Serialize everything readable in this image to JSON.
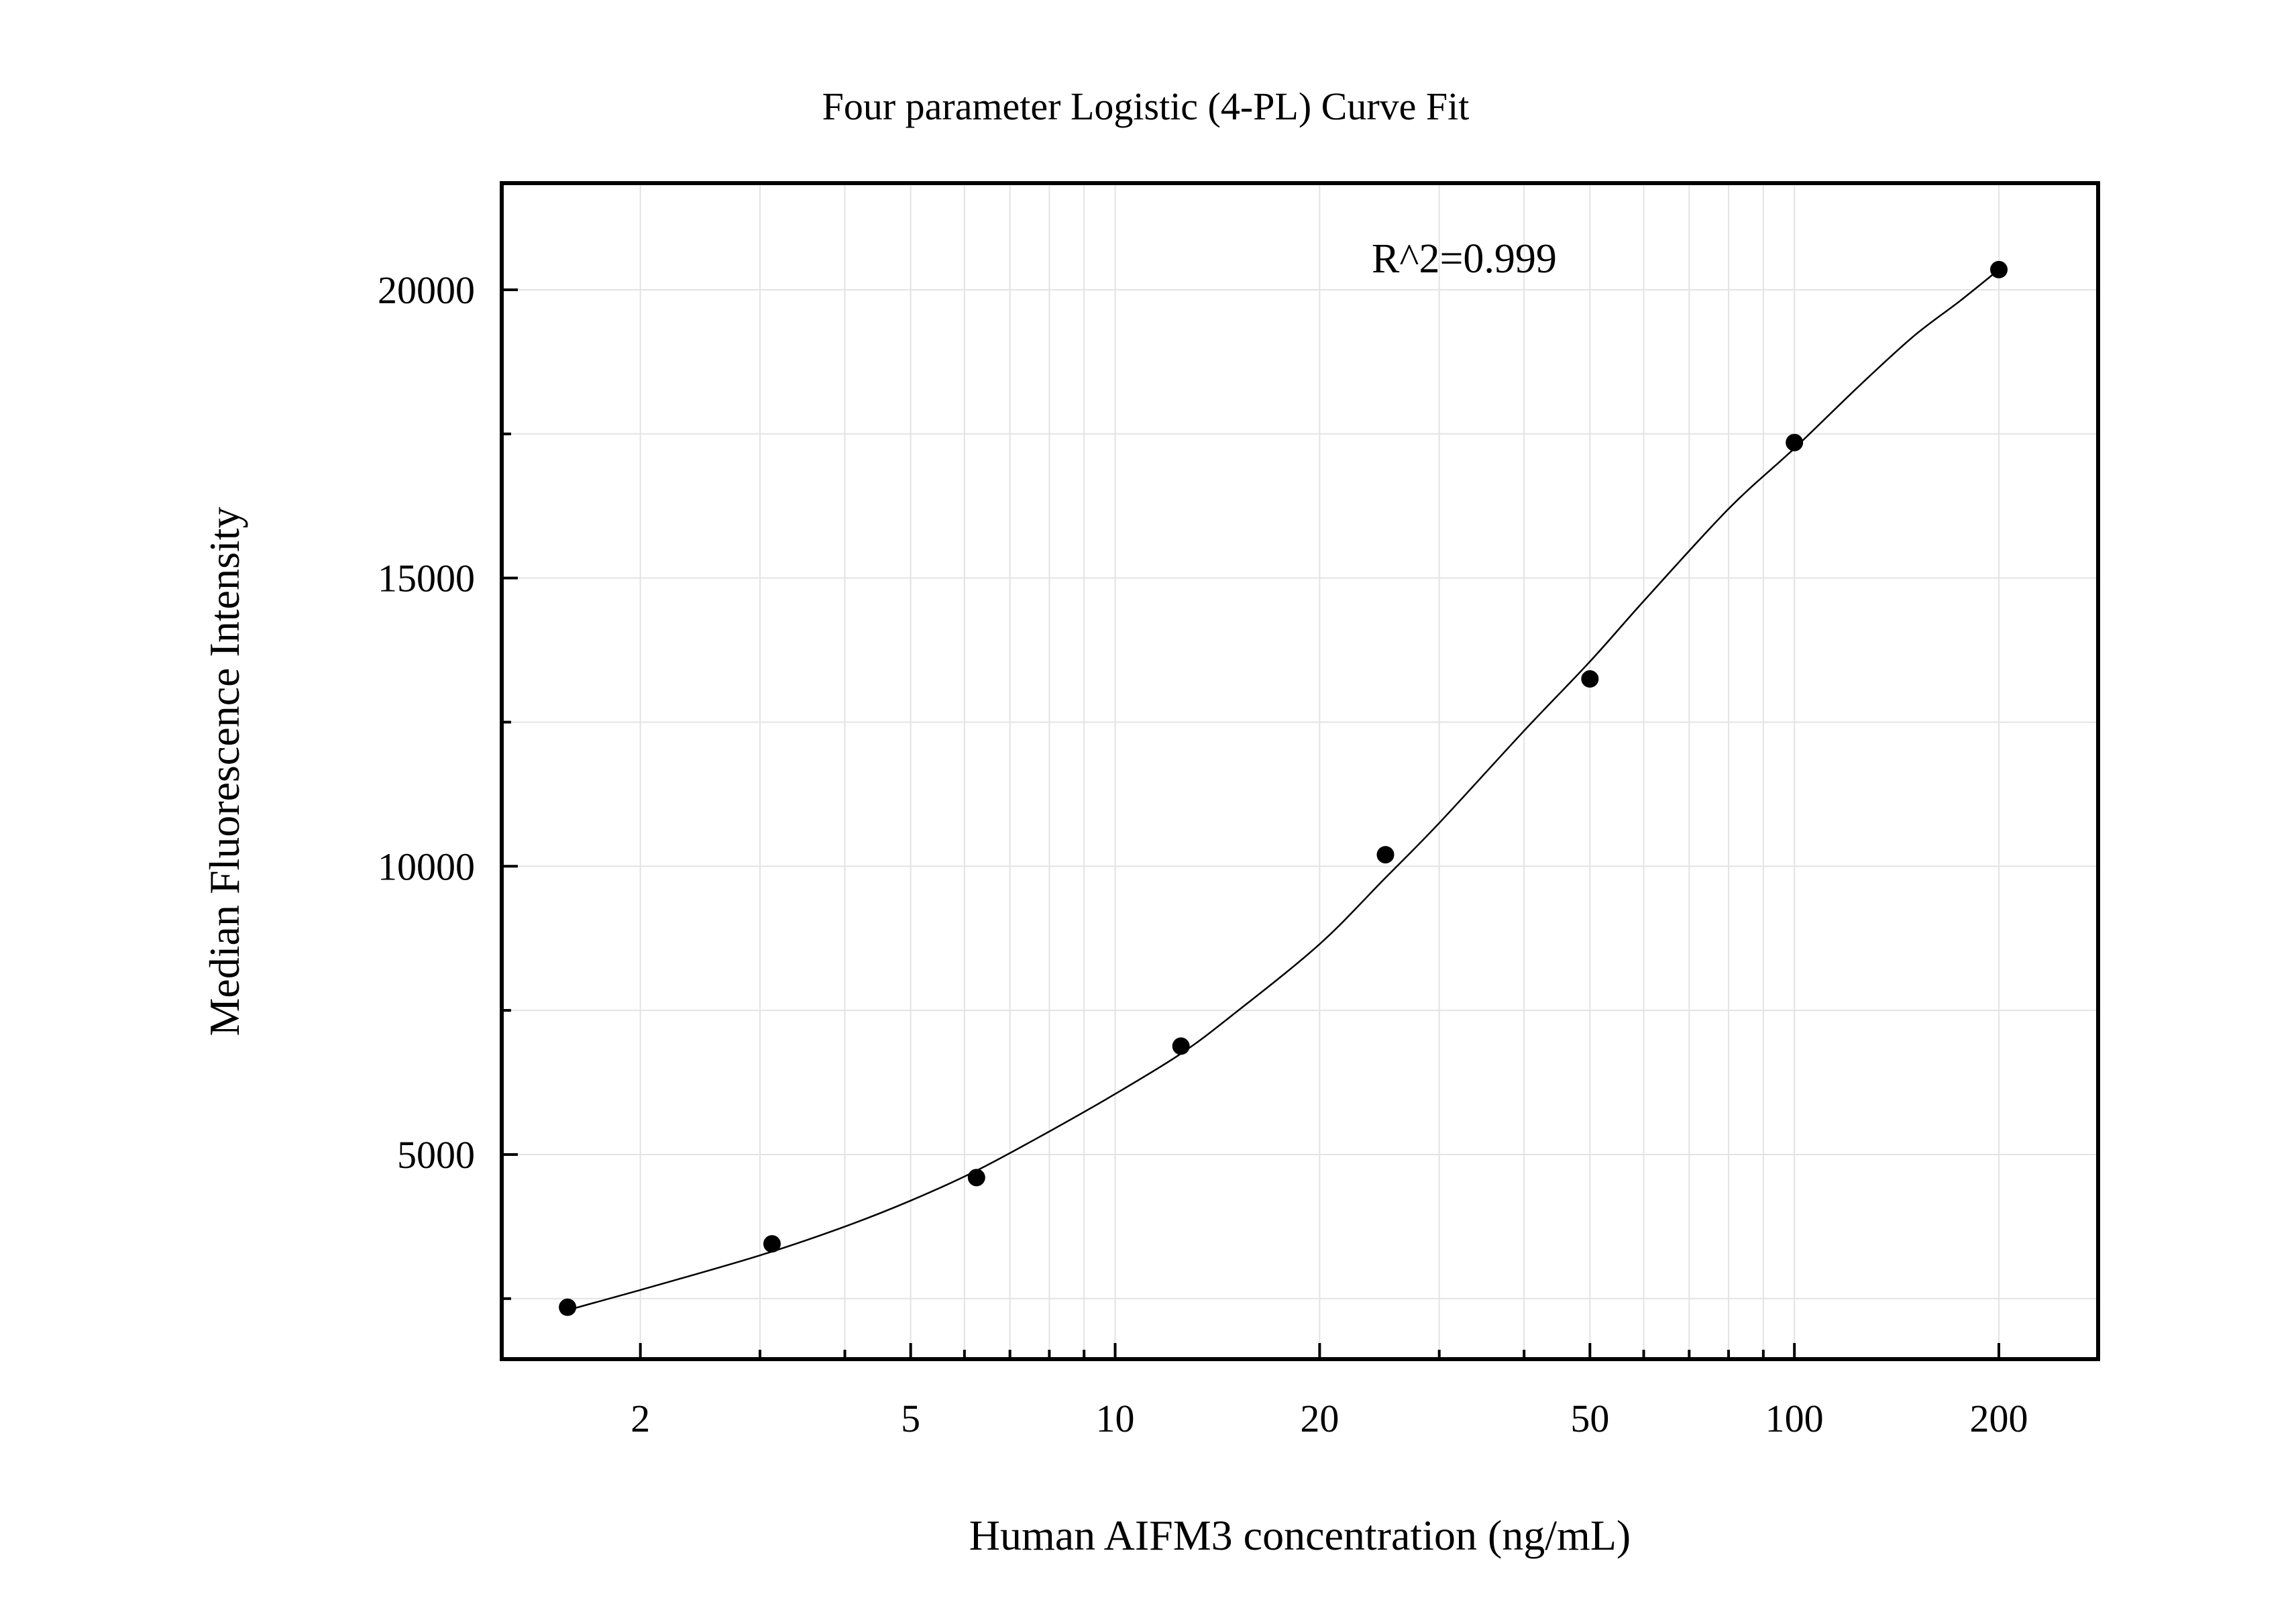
{
  "chart_data": {
    "type": "scatter",
    "title": "Four parameter Logistic (4-PL) Curve Fit",
    "xlabel": "Human AIFM3 concentration (ng/mL)",
    "ylabel": "Median Fluorescence Intensity",
    "x_scale": "log",
    "xlim": [
      1.25,
      280
    ],
    "ylim": [
      1450,
      21850
    ],
    "x_ticks": [
      2,
      5,
      10,
      20,
      50,
      100,
      200
    ],
    "x_tick_labels": [
      "2",
      "5",
      "10",
      "20",
      "50",
      "100",
      "200"
    ],
    "y_ticks": [
      5000,
      10000,
      15000,
      20000
    ],
    "y_tick_labels": [
      "5000",
      "10000",
      "15000",
      "20000"
    ],
    "y_minor_ticks": [
      2500,
      7500,
      12500,
      17500
    ],
    "grid": true,
    "annotation": "R^2=0.999",
    "series": [
      {
        "x": [
          1.5625,
          3.125,
          6.25,
          12.5,
          25,
          50,
          100,
          200
        ],
        "y": [
          2350,
          3450,
          4600,
          6880,
          10200,
          13250,
          17350,
          20350
        ]
      }
    ],
    "fit": {
      "model": "4PL",
      "x": [
        1.5625,
        2,
        3,
        4,
        5,
        6.25,
        8,
        10,
        12.5,
        15,
        20,
        25,
        30,
        40,
        50,
        60,
        80,
        100,
        125,
        150,
        175,
        200
      ],
      "y": [
        2300,
        2650,
        3250,
        3750,
        4200,
        4720,
        5400,
        6050,
        6750,
        7450,
        8650,
        9800,
        10750,
        12350,
        13550,
        14600,
        16200,
        17250,
        18350,
        19200,
        19800,
        20350
      ]
    },
    "colors": {
      "markers": "#000000",
      "curve": "#000000",
      "grid": "#e3e3e3",
      "frame": "#000000"
    }
  }
}
